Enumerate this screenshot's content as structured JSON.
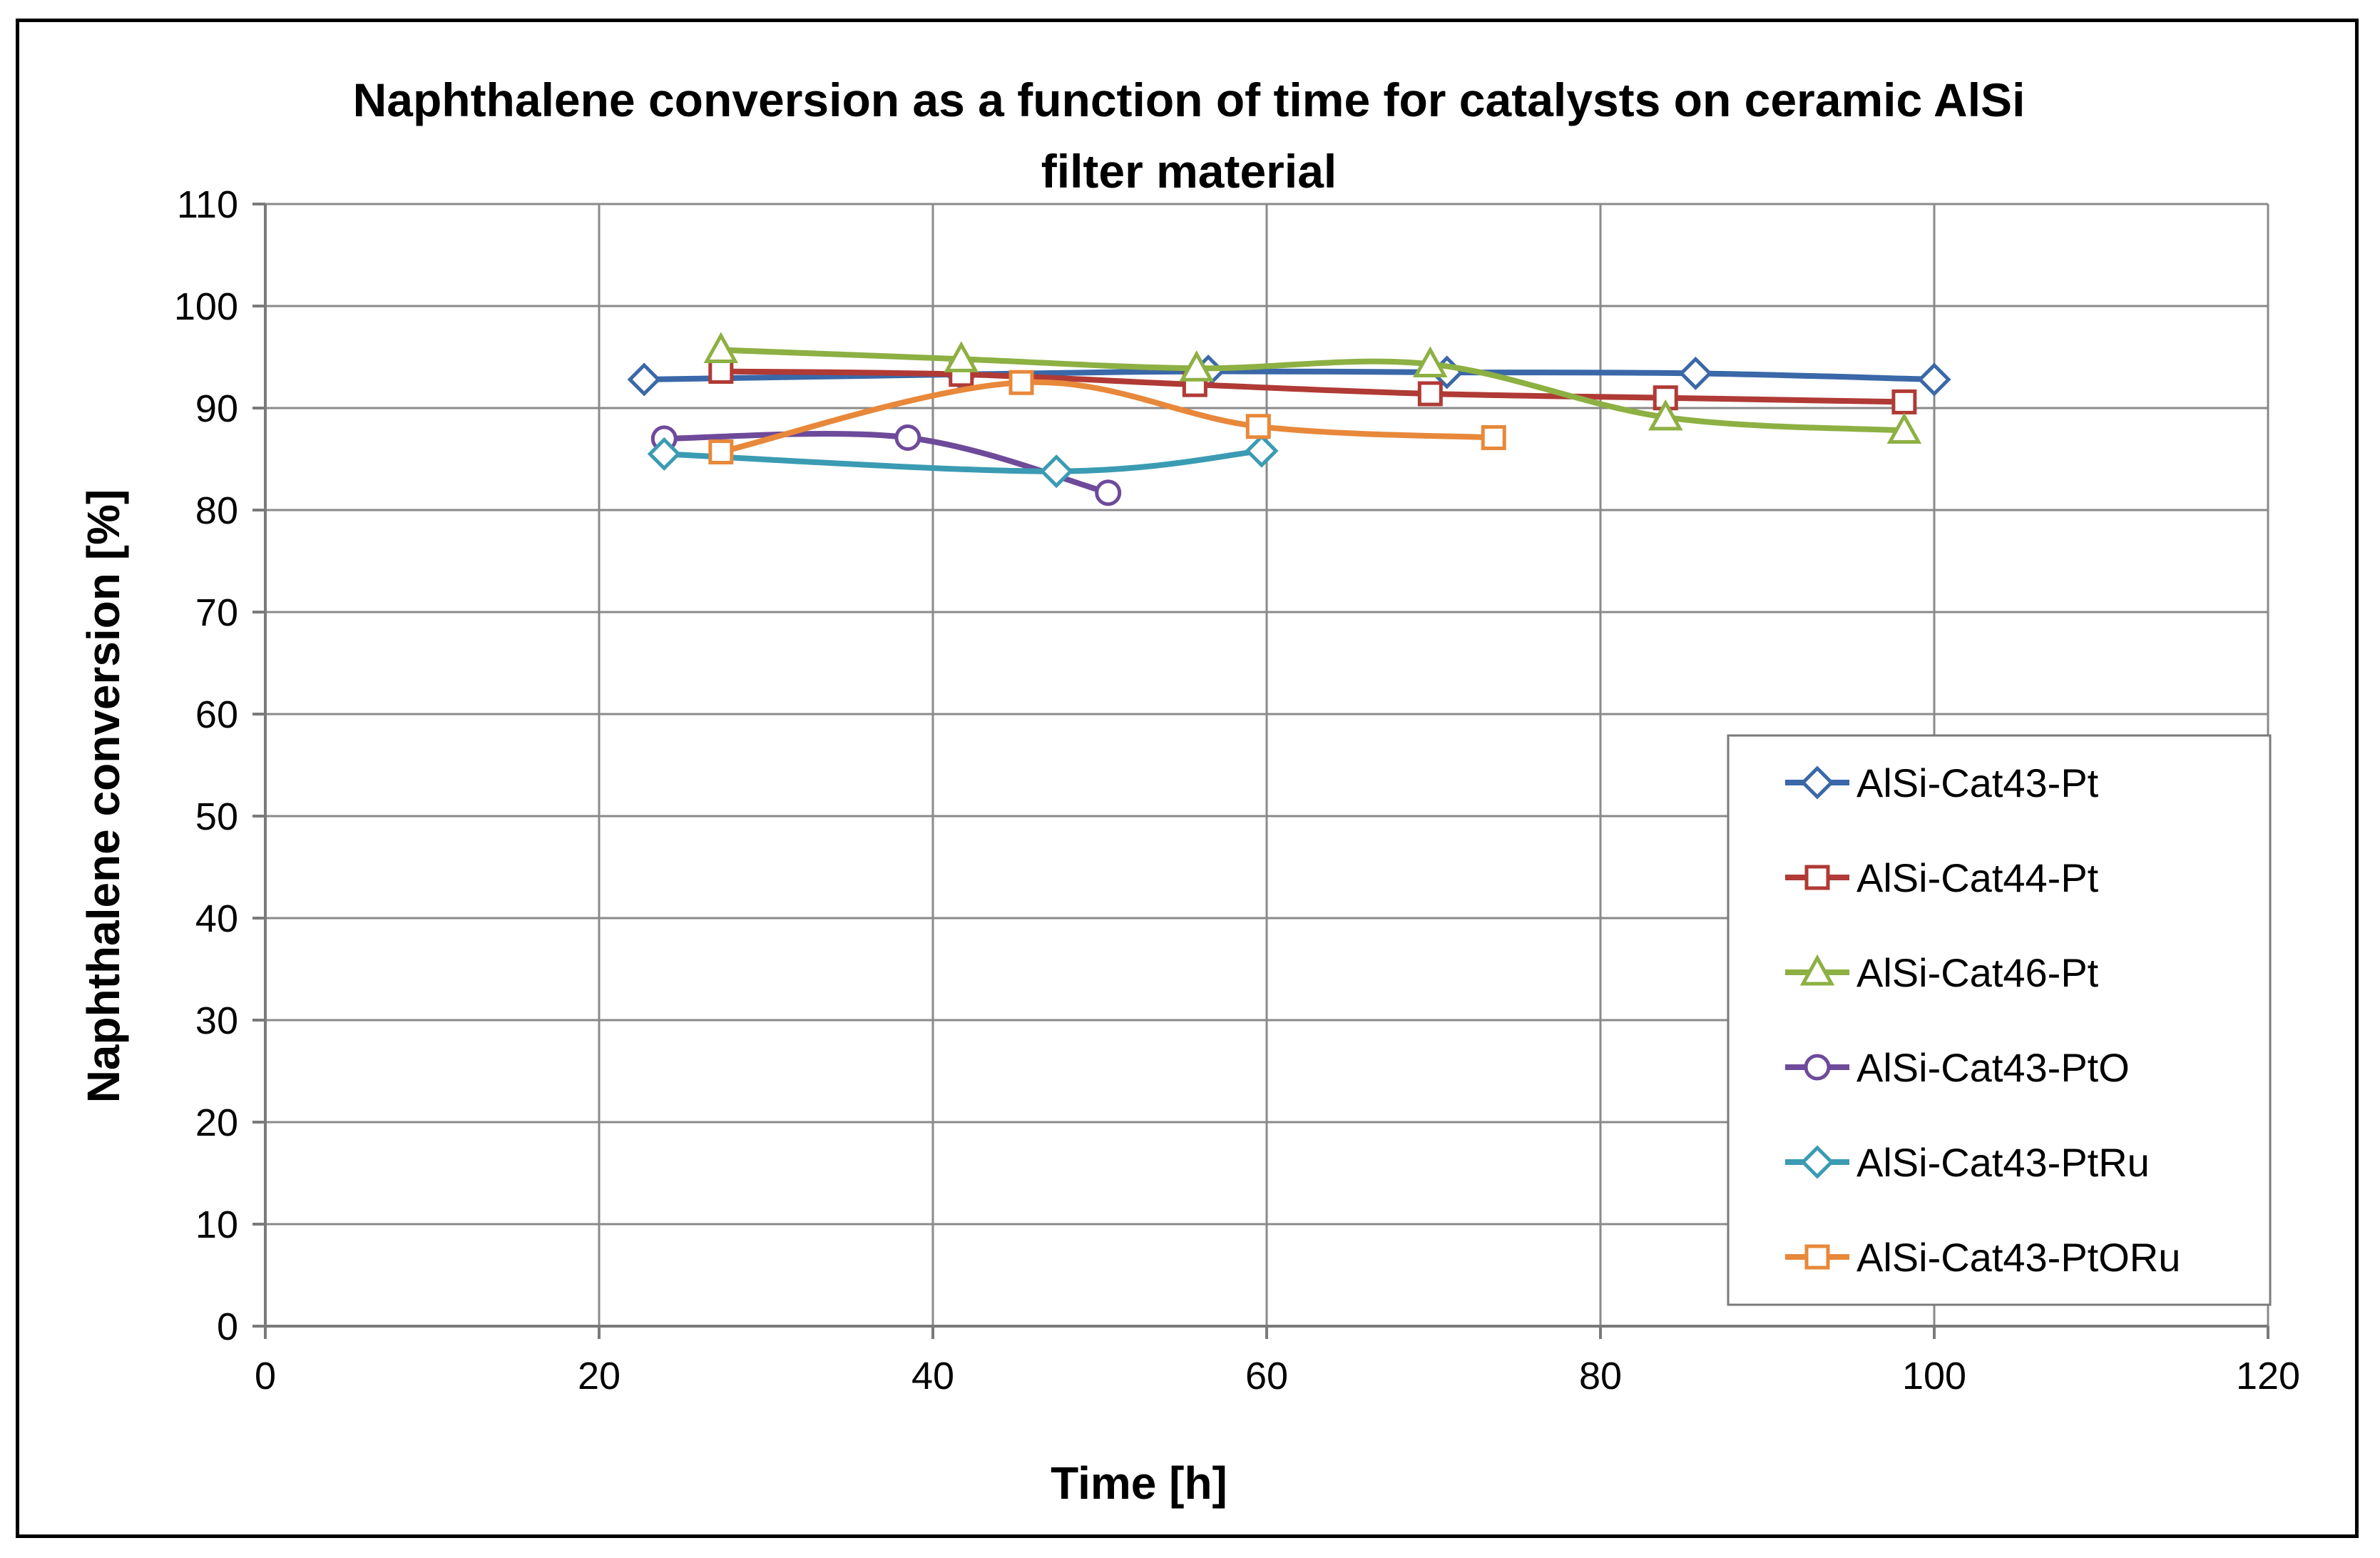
{
  "chart_data": {
    "type": "line",
    "title": "Naphthalene conversion as a function of time for catalysts on ceramic AlSi filter material",
    "title_lines": [
      "Naphthalene conversion as a function of time for catalysts on ceramic AlSi",
      "filter material"
    ],
    "xlabel": "Time [h]",
    "ylabel": "Naphthalene conversion [%]",
    "xlim": [
      0,
      120
    ],
    "ylim": [
      0,
      110
    ],
    "xticks": [
      0,
      20,
      40,
      60,
      80,
      100,
      120
    ],
    "yticks": [
      0,
      10,
      20,
      30,
      40,
      50,
      60,
      70,
      80,
      90,
      100,
      110
    ],
    "grid": true,
    "smooth": true,
    "legend_position": "lower-right",
    "series": [
      {
        "name": "AlSi-Cat43-Pt",
        "color": "#3a68a8",
        "marker": "diamond",
        "x": [
          22.7,
          41.7,
          56.5,
          70.8,
          85.7,
          100.0
        ],
        "y": [
          92.8,
          93.3,
          93.6,
          93.5,
          93.4,
          92.8
        ]
      },
      {
        "name": "AlSi-Cat44-Pt",
        "color": "#b03a35",
        "marker": "square",
        "x": [
          27.3,
          41.7,
          55.7,
          69.8,
          83.9,
          98.2
        ],
        "y": [
          93.6,
          93.3,
          92.3,
          91.4,
          91.0,
          90.6
        ]
      },
      {
        "name": "AlSi-Cat46-Pt",
        "color": "#8db043",
        "marker": "triangle",
        "x": [
          27.3,
          41.7,
          55.8,
          69.8,
          83.9,
          98.2
        ],
        "y": [
          95.7,
          94.8,
          93.9,
          94.3,
          89.1,
          87.8
        ]
      },
      {
        "name": "AlSi-Cat43-PtO",
        "color": "#6e4a9a",
        "marker": "circle",
        "x": [
          23.9,
          38.5,
          50.5
        ],
        "y": [
          87.0,
          87.1,
          81.7
        ]
      },
      {
        "name": "AlSi-Cat43-PtRu",
        "color": "#3a9bb3",
        "marker": "diamond",
        "x": [
          23.9,
          47.4,
          59.7
        ],
        "y": [
          85.5,
          83.8,
          85.8
        ]
      },
      {
        "name": "AlSi-Cat43-PtORu",
        "color": "#e8883a",
        "marker": "square",
        "x": [
          27.3,
          45.3,
          59.5,
          73.6
        ],
        "y": [
          85.7,
          92.5,
          88.2,
          87.1
        ]
      }
    ]
  }
}
